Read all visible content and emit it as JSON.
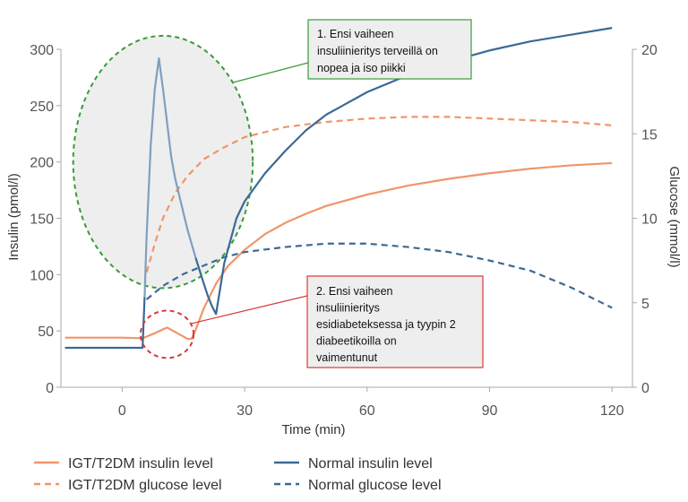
{
  "chart_data": {
    "type": "line",
    "xlabel": "Time (min)",
    "ylabel_left": "Insulin (pmol/l)",
    "ylabel_right": "Glucose (mmol/l)",
    "xlim": [
      -15,
      125
    ],
    "ylim_left": [
      0,
      300
    ],
    "ylim_right": [
      0,
      20
    ],
    "xticks": [
      "0",
      "30",
      "60",
      "90",
      "120"
    ],
    "xtick_values": [
      0,
      30,
      60,
      90,
      120
    ],
    "yticks_left": [
      "0",
      "50",
      "100",
      "150",
      "200",
      "250",
      "300"
    ],
    "yticks_left_values": [
      0,
      50,
      100,
      150,
      200,
      250,
      300
    ],
    "yticks_right": [
      "0",
      "5",
      "10",
      "15",
      "20"
    ],
    "yticks_right_values": [
      0,
      5,
      10,
      15,
      20
    ],
    "grid": false,
    "legend_placement": "bottom",
    "colors": {
      "igt": "#f0956a",
      "normal": "#3a6a96",
      "normal_spike": "#7f9fc0"
    },
    "series": [
      {
        "name": "IGT/T2DM insulin level",
        "axis": "left",
        "style": "solid",
        "color": "#f0956a",
        "x": [
          -14,
          0,
          5,
          8,
          11,
          14,
          16,
          17,
          18,
          20,
          23,
          26,
          30,
          35,
          40,
          45,
          50,
          60,
          70,
          80,
          90,
          100,
          110,
          120
        ],
        "y": [
          44,
          44,
          43.5,
          48,
          53,
          47,
          43,
          43,
          51,
          70,
          92,
          108,
          122,
          136,
          146,
          154,
          161,
          171,
          179,
          185,
          190,
          194,
          197,
          199
        ]
      },
      {
        "name": "IGT/T2DM glucose level",
        "axis": "right",
        "style": "dashed",
        "color": "#f0956a",
        "x": [
          6,
          8,
          10,
          13,
          16,
          20,
          25,
          30,
          40,
          50,
          60,
          70,
          80,
          90,
          100,
          110,
          120
        ],
        "y": [
          6.8,
          8.5,
          10.0,
          11.5,
          12.5,
          13.5,
          14.2,
          14.8,
          15.4,
          15.7,
          15.9,
          16.0,
          16.0,
          15.9,
          15.8,
          15.7,
          15.5
        ]
      },
      {
        "name": "Normal insulin level",
        "axis": "left",
        "style": "solid",
        "color": "#3a6a96",
        "x": [
          -14,
          0,
          5,
          5.5,
          6,
          7,
          8,
          9,
          10,
          11,
          12,
          13,
          14,
          16,
          18,
          20,
          21,
          22,
          23,
          25,
          28,
          30,
          35,
          40,
          45,
          50,
          60,
          70,
          80,
          90,
          100,
          110,
          120
        ],
        "y": [
          35,
          35,
          35,
          80,
          135,
          215,
          265,
          292,
          265,
          235,
          205,
          185,
          170,
          140,
          115,
          92,
          81,
          72,
          65,
          110,
          150,
          165,
          190,
          210,
          228,
          242,
          262,
          277,
          289,
          299,
          307,
          313,
          319
        ]
      },
      {
        "name": "Normal glucose level",
        "axis": "right",
        "style": "dashed",
        "color": "#3a6a96",
        "x": [
          6,
          10,
          15,
          20,
          25,
          30,
          40,
          50,
          55,
          60,
          70,
          80,
          90,
          100,
          110,
          120
        ],
        "y": [
          5.2,
          6.0,
          6.7,
          7.2,
          7.7,
          8.0,
          8.3,
          8.5,
          8.5,
          8.5,
          8.3,
          8.0,
          7.5,
          6.9,
          5.9,
          4.7
        ]
      }
    ],
    "annotations": [
      {
        "lines": [
          "1. Ensi vaiheen",
          "insuliinieritys terveillä on",
          "nopea ja iso piikki"
        ],
        "target_x": 10,
        "target_y_left": 200,
        "circle_rx_min": 22,
        "circle_ry_pmol": 112,
        "circle_color": "#3a9a3a"
      },
      {
        "lines": [
          "2. Ensi vaiheen",
          "insuliinieritys",
          "esidiabeteksessa ja tyypin 2",
          "diabeetikoilla on",
          "vaimentunut"
        ],
        "target_x": 11,
        "target_y_left": 47,
        "circle_rx_min": 6.5,
        "circle_ry_pmol": 21,
        "circle_color": "#d83a3a"
      }
    ]
  }
}
